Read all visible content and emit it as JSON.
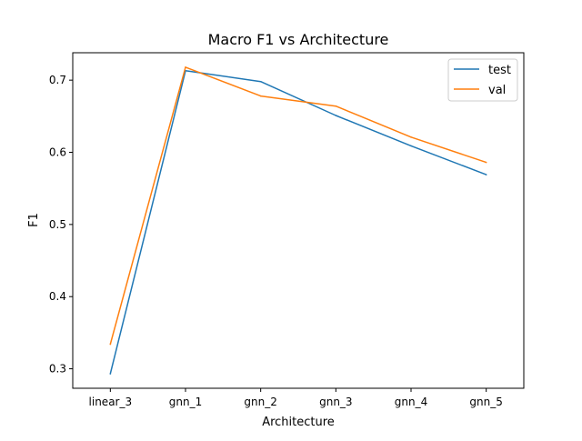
{
  "chart_data": {
    "type": "line",
    "title": "Macro F1 vs Architecture",
    "xlabel": "Architecture",
    "ylabel": "F1",
    "categories": [
      "linear_3",
      "gnn_1",
      "gnn_2",
      "gnn_3",
      "gnn_4",
      "gnn_5"
    ],
    "series": [
      {
        "name": "test",
        "color": "#1f77b4",
        "values": [
          0.293,
          0.713,
          0.698,
          0.651,
          0.609,
          0.569
        ]
      },
      {
        "name": "val",
        "color": "#ff7f0e",
        "values": [
          0.334,
          0.718,
          0.678,
          0.664,
          0.621,
          0.586
        ]
      }
    ],
    "ylim": [
      0.273,
      0.738
    ],
    "yticks": [
      0.3,
      0.4,
      0.5,
      0.6,
      0.7
    ],
    "ytick_labels": [
      "0.3",
      "0.4",
      "0.5",
      "0.6",
      "0.7"
    ],
    "grid": false,
    "legend_position": "top-right"
  }
}
